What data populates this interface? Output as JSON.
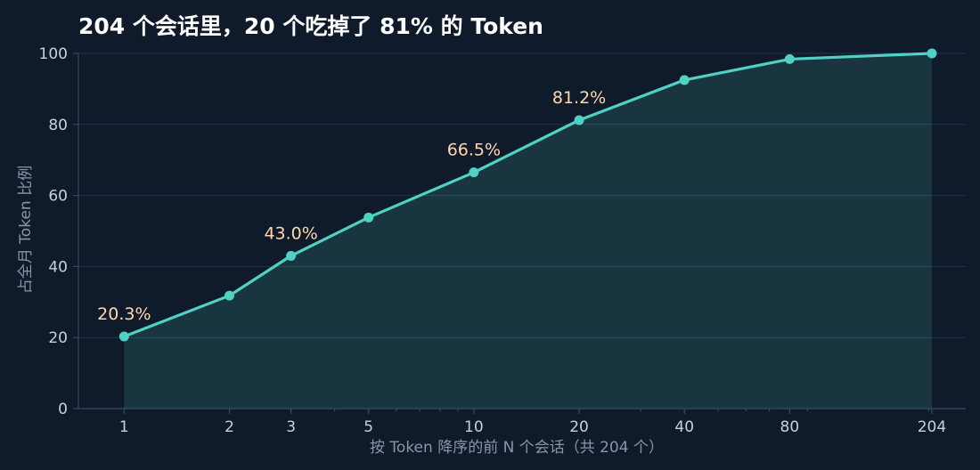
{
  "chart_data": {
    "type": "line",
    "title": "204 个会话里，20 个吃掉了 81% 的 Token",
    "xlabel": "按 Token 降序的前 N 个会话（共 204 个）",
    "ylabel": "占全月 Token 比例",
    "x_scale": "log",
    "x": [
      1,
      2,
      3,
      5,
      10,
      20,
      40,
      80,
      204
    ],
    "x_tick_labels": [
      "1",
      "2",
      "3",
      "5",
      "10",
      "20",
      "40",
      "80",
      "204"
    ],
    "y": [
      20.3,
      31.8,
      43.0,
      53.8,
      66.5,
      81.2,
      92.5,
      98.4,
      100.0
    ],
    "ylim": [
      0,
      100
    ],
    "y_ticks": [
      "0",
      "20",
      "40",
      "60",
      "80",
      "100"
    ],
    "annotations": [
      {
        "x": 1,
        "y": 20.3,
        "text": "20.3%"
      },
      {
        "x": 3,
        "y": 43.0,
        "text": "43.0%"
      },
      {
        "x": 10,
        "y": 66.5,
        "text": "66.5%"
      },
      {
        "x": 20,
        "y": 81.2,
        "text": "81.2%"
      }
    ],
    "grid": "horizontal",
    "colors": {
      "line": "#4fd1c5",
      "fill": "#1d3d45",
      "background": "#0f1a2a"
    }
  }
}
